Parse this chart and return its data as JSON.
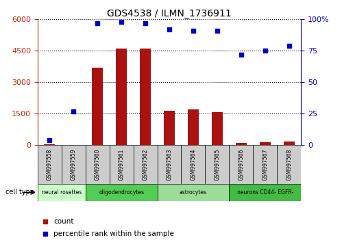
{
  "title": "GDS4538 / ILMN_1736911",
  "samples": [
    "GSM997558",
    "GSM997559",
    "GSM997560",
    "GSM997561",
    "GSM997562",
    "GSM997563",
    "GSM997564",
    "GSM997565",
    "GSM997566",
    "GSM997567",
    "GSM997568"
  ],
  "counts": [
    30,
    20,
    3700,
    4600,
    4600,
    1650,
    1700,
    1580,
    120,
    140,
    170
  ],
  "percentiles": [
    4,
    27,
    97,
    98,
    97,
    92,
    91,
    91,
    72,
    75,
    79
  ],
  "cell_types": [
    {
      "label": "neural rosettes",
      "start": 0,
      "end": 2,
      "color": "#ccffcc"
    },
    {
      "label": "oligodendrocytes",
      "start": 2,
      "end": 5,
      "color": "#55cc55"
    },
    {
      "label": "astrocytes",
      "start": 5,
      "end": 8,
      "color": "#99dd99"
    },
    {
      "label": "neurons CD44- EGFR-",
      "start": 8,
      "end": 11,
      "color": "#44bb44"
    }
  ],
  "ylim_left": [
    0,
    6000
  ],
  "ylim_right": [
    0,
    100
  ],
  "yticks_left": [
    0,
    1500,
    3000,
    4500,
    6000
  ],
  "yticks_right": [
    0,
    25,
    50,
    75,
    100
  ],
  "bar_color": "#aa1111",
  "dot_color": "#0000cc",
  "bar_width": 0.45,
  "legend_count_label": "count",
  "legend_percentile_label": "percentile rank within the sample",
  "left_axis_color": "#cc2200",
  "right_axis_color": "#0000cc",
  "sample_box_color": "#cccccc",
  "fig_width": 4.99,
  "fig_height": 3.54,
  "dpi": 100
}
